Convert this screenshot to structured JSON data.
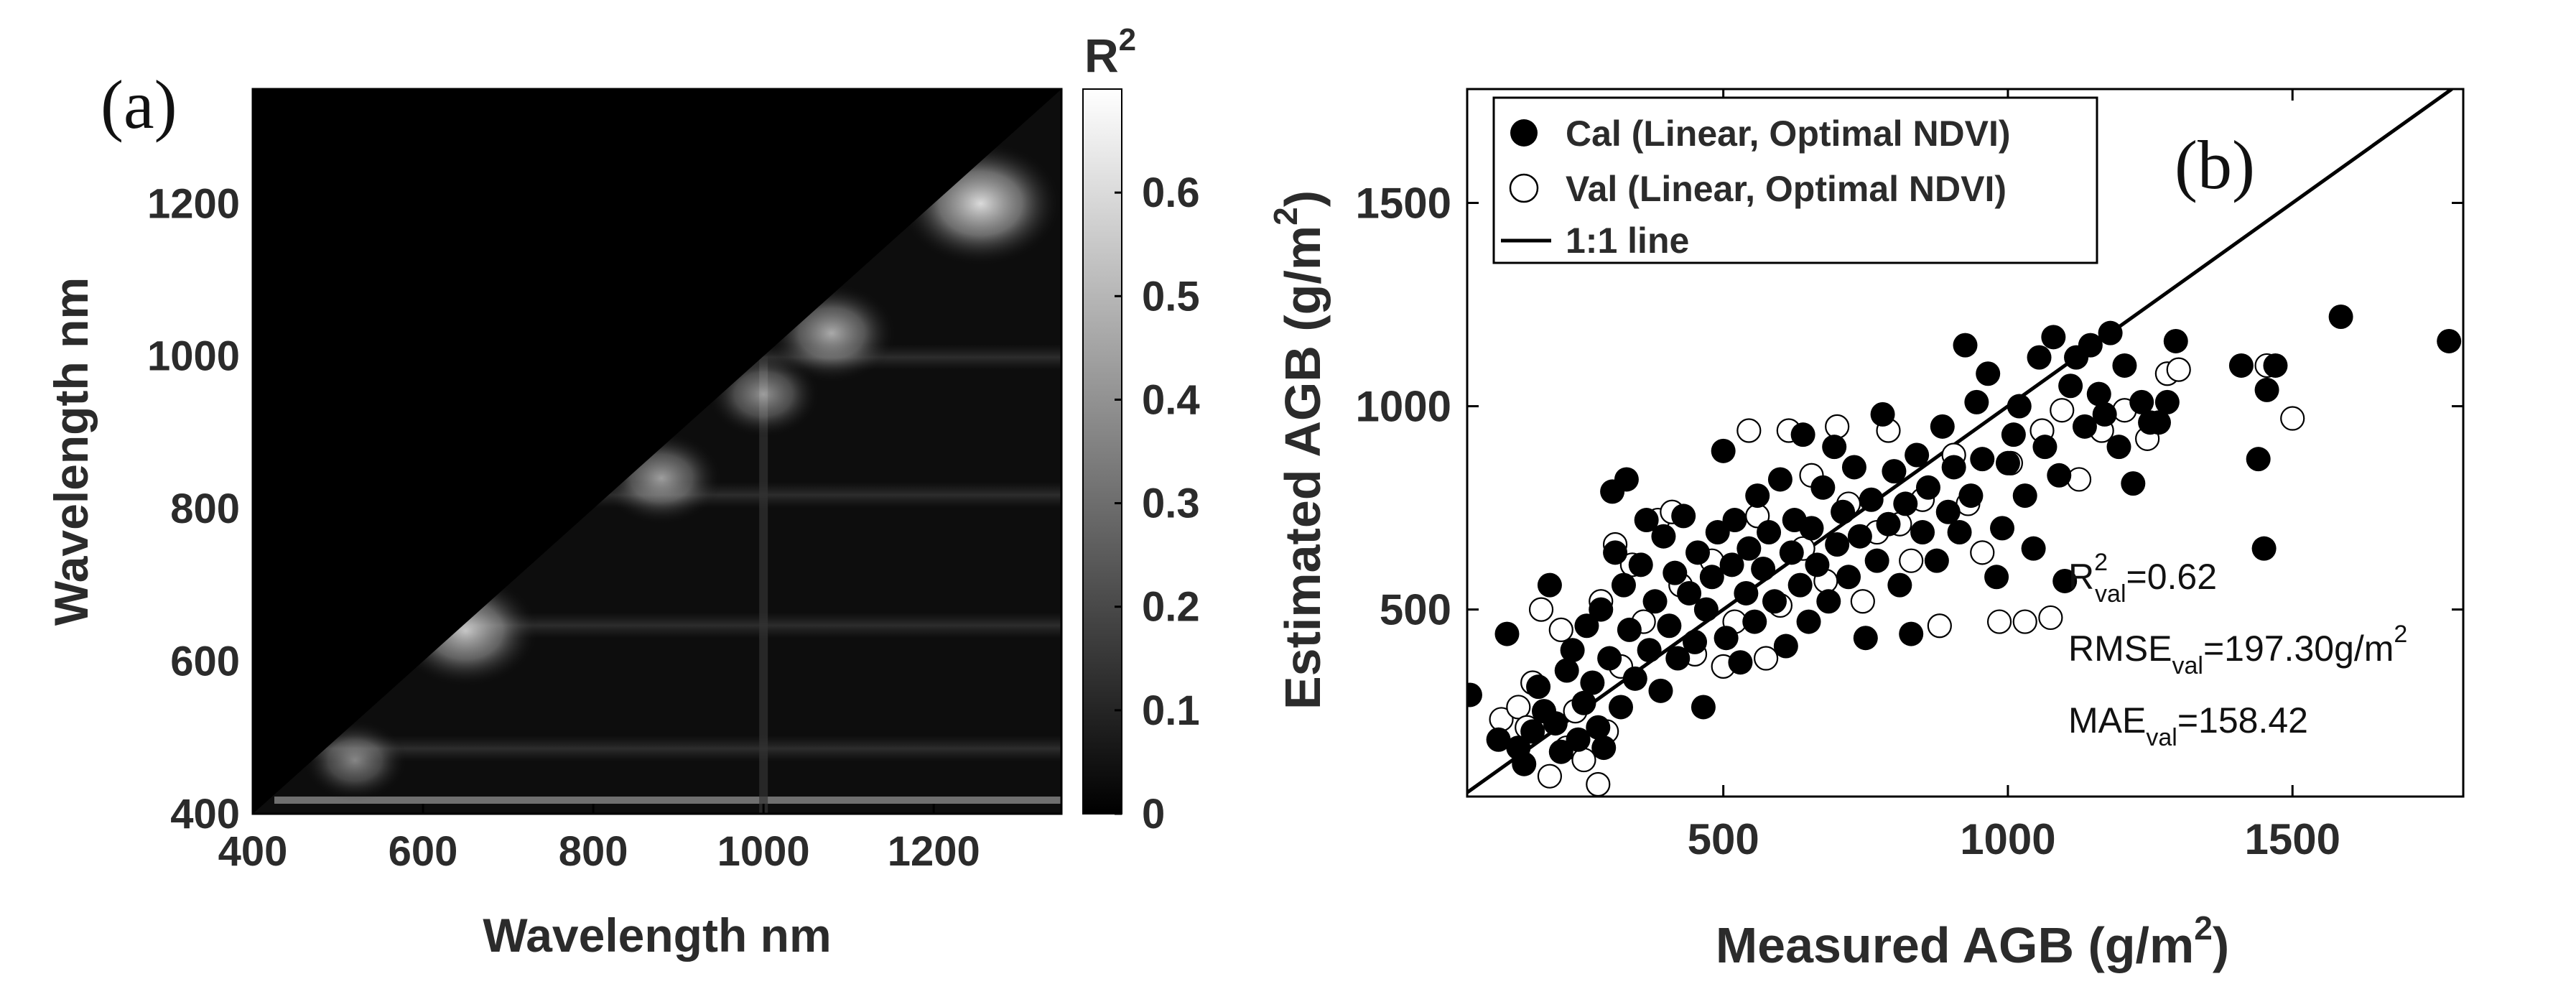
{
  "chart_data": [
    {
      "type": "heatmap",
      "panel_label": "(a)",
      "title": "",
      "xlabel": "Wavelength nm",
      "ylabel": "Wavelength nm",
      "xlim": [
        400,
        1350
      ],
      "ylim": [
        400,
        1350
      ],
      "xticks": [
        "400",
        "600",
        "800",
        "1000",
        "1200"
      ],
      "yticks": [
        "400",
        "600",
        "800",
        "1000",
        "1200"
      ],
      "colorbar": {
        "label": "R",
        "label_superscript": "2",
        "range": [
          0,
          0.7
        ],
        "ticks": [
          "0",
          "0.1",
          "0.2",
          "0.3",
          "0.4",
          "0.5",
          "0.6"
        ],
        "colormap": [
          "#000000",
          "#ffffff"
        ]
      },
      "hotspots": [
        {
          "x": 1255,
          "y": 1200,
          "r2": 0.65
        },
        {
          "x": 1080,
          "y": 1030,
          "r2": 0.45
        },
        {
          "x": 1000,
          "y": 950,
          "r2": 0.35
        },
        {
          "x": 880,
          "y": 840,
          "r2": 0.4
        },
        {
          "x": 650,
          "y": 640,
          "r2": 0.55
        },
        {
          "x": 520,
          "y": 470,
          "r2": 0.3
        }
      ]
    },
    {
      "type": "scatter",
      "panel_label": "(b)",
      "xlabel": "Measured AGB",
      "xlabel_units": " (g/m",
      "xlabel_sup": "2",
      "xlabel_close": ")",
      "ylabel": "Estimated AGB",
      "ylabel_units": " (g/m",
      "ylabel_sup": "2",
      "ylabel_close": ")",
      "xlim": [
        50,
        1800
      ],
      "ylim": [
        40,
        1780
      ],
      "xticks": [
        "500",
        "1000",
        "1500"
      ],
      "yticks": [
        "500",
        "1000",
        "1500"
      ],
      "grid": false,
      "legend_position": "top-left",
      "legend": [
        "Cal (Linear, Optimal NDVI)",
        "Val (Linear, Optimal NDVI)",
        "1:1 line"
      ],
      "stats": {
        "r2": {
          "label": "R",
          "sup": "2",
          "sub": "val",
          "value": "=0.62"
        },
        "rmse": {
          "label": "RMSE",
          "sub": "val",
          "value": "=197.30g/m",
          "sup": "2"
        },
        "mae": {
          "label": "MAE",
          "sub": "val",
          "value": "=158.42"
        }
      },
      "series": [
        {
          "name": "Cal (Linear, Optimal NDVI)",
          "marker": "filled-circle",
          "points": [
            [
              55,
              290
            ],
            [
              105,
              180
            ],
            [
              120,
              440
            ],
            [
              140,
              160
            ],
            [
              150,
              120
            ],
            [
              165,
              200
            ],
            [
              175,
              310
            ],
            [
              185,
              250
            ],
            [
              195,
              560
            ],
            [
              205,
              220
            ],
            [
              215,
              150
            ],
            [
              225,
              350
            ],
            [
              235,
              400
            ],
            [
              245,
              180
            ],
            [
              255,
              270
            ],
            [
              260,
              460
            ],
            [
              270,
              320
            ],
            [
              280,
              210
            ],
            [
              285,
              500
            ],
            [
              290,
              160
            ],
            [
              300,
              380
            ],
            [
              305,
              790
            ],
            [
              310,
              640
            ],
            [
              320,
              260
            ],
            [
              325,
              560
            ],
            [
              330,
              820
            ],
            [
              335,
              450
            ],
            [
              345,
              330
            ],
            [
              355,
              610
            ],
            [
              365,
              720
            ],
            [
              370,
              400
            ],
            [
              380,
              520
            ],
            [
              390,
              300
            ],
            [
              395,
              680
            ],
            [
              405,
              460
            ],
            [
              415,
              590
            ],
            [
              420,
              380
            ],
            [
              430,
              730
            ],
            [
              440,
              540
            ],
            [
              450,
              420
            ],
            [
              455,
              640
            ],
            [
              465,
              260
            ],
            [
              470,
              500
            ],
            [
              480,
              580
            ],
            [
              490,
              690
            ],
            [
              500,
              890
            ],
            [
              505,
              430
            ],
            [
              515,
              610
            ],
            [
              520,
              720
            ],
            [
              530,
              370
            ],
            [
              540,
              540
            ],
            [
              545,
              650
            ],
            [
              555,
              470
            ],
            [
              560,
              780
            ],
            [
              570,
              600
            ],
            [
              580,
              690
            ],
            [
              590,
              520
            ],
            [
              600,
              820
            ],
            [
              610,
              410
            ],
            [
              620,
              640
            ],
            [
              625,
              720
            ],
            [
              635,
              560
            ],
            [
              640,
              930
            ],
            [
              650,
              470
            ],
            [
              655,
              700
            ],
            [
              665,
              610
            ],
            [
              675,
              800
            ],
            [
              685,
              520
            ],
            [
              695,
              900
            ],
            [
              700,
              660
            ],
            [
              710,
              740
            ],
            [
              720,
              580
            ],
            [
              730,
              850
            ],
            [
              740,
              680
            ],
            [
              750,
              430
            ],
            [
              760,
              770
            ],
            [
              770,
              620
            ],
            [
              780,
              980
            ],
            [
              790,
              710
            ],
            [
              800,
              840
            ],
            [
              810,
              560
            ],
            [
              820,
              760
            ],
            [
              830,
              440
            ],
            [
              840,
              880
            ],
            [
              850,
              690
            ],
            [
              860,
              800
            ],
            [
              875,
              620
            ],
            [
              885,
              950
            ],
            [
              895,
              740
            ],
            [
              905,
              850
            ],
            [
              915,
              690
            ],
            [
              925,
              1150
            ],
            [
              935,
              780
            ],
            [
              945,
              1010
            ],
            [
              955,
              870
            ],
            [
              965,
              1080
            ],
            [
              980,
              580
            ],
            [
              990,
              700
            ],
            [
              1000,
              860
            ],
            [
              1010,
              930
            ],
            [
              1020,
              1000
            ],
            [
              1030,
              780
            ],
            [
              1045,
              650
            ],
            [
              1055,
              1120
            ],
            [
              1065,
              900
            ],
            [
              1080,
              1170
            ],
            [
              1090,
              830
            ],
            [
              1100,
              570
            ],
            [
              1110,
              1050
            ],
            [
              1120,
              1120
            ],
            [
              1135,
              950
            ],
            [
              1145,
              1150
            ],
            [
              1160,
              1030
            ],
            [
              1170,
              980
            ],
            [
              1180,
              1180
            ],
            [
              1195,
              900
            ],
            [
              1205,
              1100
            ],
            [
              1220,
              810
            ],
            [
              1235,
              1010
            ],
            [
              1250,
              960
            ],
            [
              1265,
              960
            ],
            [
              1280,
              1010
            ],
            [
              1295,
              1160
            ],
            [
              1410,
              1100
            ],
            [
              1440,
              870
            ],
            [
              1450,
              650
            ],
            [
              1455,
              1040
            ],
            [
              1470,
              1100
            ],
            [
              1585,
              1220
            ],
            [
              1775,
              1160
            ]
          ]
        },
        {
          "name": "Val (Linear, Optimal NDVI)",
          "marker": "open-circle",
          "points": [
            [
              110,
              230
            ],
            [
              140,
              260
            ],
            [
              155,
              210
            ],
            [
              165,
              320
            ],
            [
              180,
              500
            ],
            [
              195,
              90
            ],
            [
              215,
              450
            ],
            [
              225,
              160
            ],
            [
              240,
              250
            ],
            [
              255,
              130
            ],
            [
              280,
              70
            ],
            [
              285,
              520
            ],
            [
              295,
              200
            ],
            [
              310,
              660
            ],
            [
              320,
              360
            ],
            [
              340,
              610
            ],
            [
              360,
              470
            ],
            [
              385,
              720
            ],
            [
              410,
              740
            ],
            [
              425,
              560
            ],
            [
              450,
              390
            ],
            [
              480,
              620
            ],
            [
              500,
              360
            ],
            [
              520,
              470
            ],
            [
              545,
              940
            ],
            [
              560,
              730
            ],
            [
              575,
              380
            ],
            [
              600,
              510
            ],
            [
              615,
              940
            ],
            [
              640,
              650
            ],
            [
              655,
              830
            ],
            [
              680,
              570
            ],
            [
              700,
              950
            ],
            [
              720,
              760
            ],
            [
              745,
              520
            ],
            [
              770,
              690
            ],
            [
              790,
              940
            ],
            [
              810,
              710
            ],
            [
              830,
              620
            ],
            [
              850,
              770
            ],
            [
              880,
              460
            ],
            [
              905,
              880
            ],
            [
              930,
              760
            ],
            [
              955,
              640
            ],
            [
              985,
              470
            ],
            [
              1005,
              860
            ],
            [
              1030,
              470
            ],
            [
              1060,
              940
            ],
            [
              1075,
              480
            ],
            [
              1095,
              990
            ],
            [
              1125,
              820
            ],
            [
              1165,
              940
            ],
            [
              1205,
              990
            ],
            [
              1245,
              920
            ],
            [
              1280,
              1080
            ],
            [
              1300,
              1090
            ],
            [
              1455,
              1100
            ],
            [
              1500,
              970
            ]
          ]
        }
      ]
    }
  ]
}
